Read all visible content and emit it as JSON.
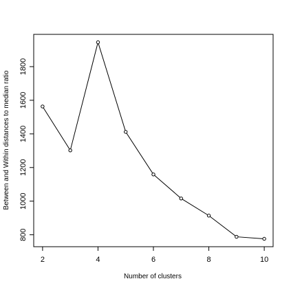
{
  "chart_data": {
    "type": "line",
    "x_label": "Number of clusters",
    "y_label": "Between and Within distances to median ratio",
    "x": [
      2,
      3,
      4,
      5,
      6,
      7,
      8,
      9,
      10
    ],
    "series": [
      {
        "color": "#000000",
        "values": [
          1563,
          1302,
          1945,
          1412,
          1159,
          1016,
          914,
          788,
          776
        ]
      }
    ],
    "xlim": [
      1.68,
      10.32
    ],
    "xticks": [
      2,
      4,
      6,
      8,
      10
    ],
    "ylim": [
      729,
      1992
    ],
    "yticks": [
      800,
      1000,
      1200,
      1400,
      1600,
      1800
    ],
    "markers": true,
    "grid": false
  }
}
